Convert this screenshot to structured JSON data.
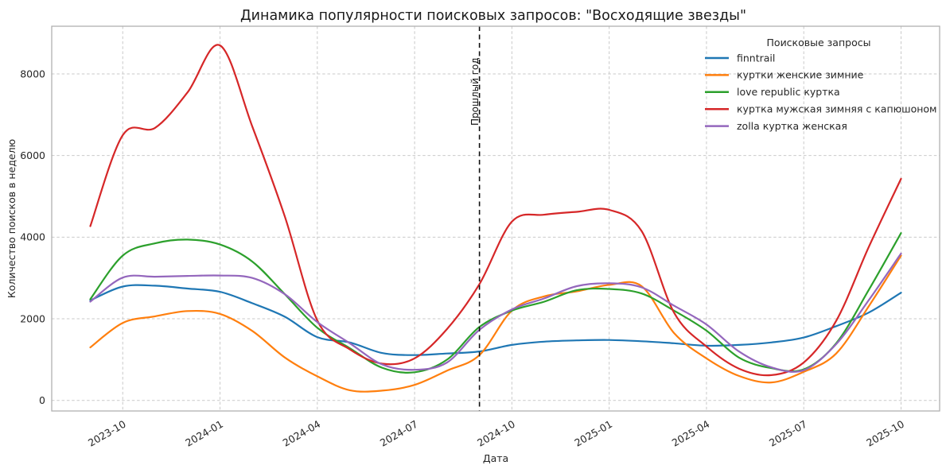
{
  "chart_data": {
    "type": "line",
    "title": "Динамика популярности поисковых запросов: \"Восходящие звезды\"",
    "xlabel": "Дата",
    "ylabel": "Количество поисков в неделю",
    "grid": true,
    "legend_title": "Поисковые запросы",
    "legend_position": "upper right",
    "ylim": [
      -300,
      9200
    ],
    "yticks": [
      0,
      2000,
      4000,
      6000,
      8000
    ],
    "yticklabels": [
      "0",
      "2000",
      "4000",
      "6000",
      "8000"
    ],
    "xticks": [
      1,
      4,
      7,
      10,
      13,
      16,
      19,
      22,
      25
    ],
    "xticklabels": [
      "2023-10",
      "2024-01",
      "2024-04",
      "2024-07",
      "2024-10",
      "2025-01",
      "2025-04",
      "2025-07",
      "2025-10"
    ],
    "x": [
      "2023-09",
      "2023-10",
      "2023-11",
      "2023-12",
      "2024-01",
      "2024-02",
      "2024-03",
      "2024-04",
      "2024-05",
      "2024-06",
      "2024-07",
      "2024-08",
      "2024-09",
      "2024-10",
      "2024-11",
      "2024-12",
      "2025-01",
      "2025-02",
      "2025-03",
      "2025-04",
      "2025-05",
      "2025-06",
      "2025-07",
      "2025-08",
      "2025-09",
      "2025-10"
    ],
    "series": [
      {
        "name": "finntrail",
        "color": "#1f77b4",
        "values": [
          2450,
          2790,
          2810,
          2740,
          2660,
          2380,
          2050,
          1550,
          1420,
          1160,
          1110,
          1150,
          1200,
          1360,
          1440,
          1470,
          1480,
          1450,
          1400,
          1340,
          1360,
          1420,
          1540,
          1820,
          2150,
          2640
        ]
      },
      {
        "name": "куртки женские зимние",
        "color": "#ff7f0e",
        "values": [
          1300,
          1900,
          2060,
          2190,
          2120,
          1700,
          1050,
          590,
          250,
          240,
          380,
          730,
          1110,
          2200,
          2550,
          2670,
          2830,
          2800,
          1650,
          1030,
          600,
          440,
          700,
          1150,
          2300,
          3550
        ]
      },
      {
        "name": "love republic куртка",
        "color": "#2ca02c",
        "values": [
          2480,
          3550,
          3850,
          3940,
          3820,
          3400,
          2600,
          1780,
          1280,
          800,
          690,
          1000,
          1800,
          2200,
          2420,
          2700,
          2730,
          2620,
          2200,
          1710,
          1050,
          790,
          760,
          1400,
          2700,
          4100
        ]
      },
      {
        "name": "куртка мужская зимняя с капюшоном",
        "color": "#d62728",
        "values": [
          4270,
          6500,
          6680,
          7550,
          8700,
          6700,
          4500,
          1960,
          1250,
          900,
          1030,
          1750,
          2850,
          4380,
          4550,
          4620,
          4670,
          4150,
          2150,
          1320,
          780,
          620,
          930,
          1950,
          3750,
          5430
        ]
      },
      {
        "name": "zolla куртка женская",
        "color": "#9467bd",
        "values": [
          2420,
          3010,
          3030,
          3050,
          3060,
          3000,
          2600,
          1920,
          1400,
          880,
          750,
          930,
          1730,
          2230,
          2500,
          2800,
          2870,
          2770,
          2320,
          1860,
          1200,
          810,
          740,
          1380,
          2450,
          3600
        ]
      }
    ],
    "annotation": {
      "label": "Прошлый год",
      "x": "2024-09",
      "style": "vertical-dashed-line"
    }
  },
  "style": {
    "grid_color": "#c9c9c9",
    "spine_color": "#b0b0b0",
    "annotation_line_color": "#111111",
    "background": "#ffffff"
  }
}
